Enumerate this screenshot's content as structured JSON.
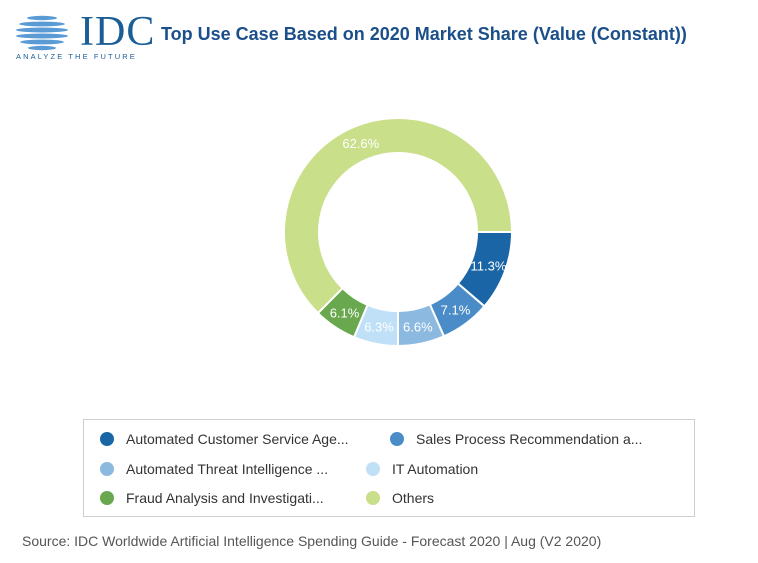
{
  "logo": {
    "word": "IDC",
    "tagline": "ANALYZE THE FUTURE",
    "color": "#1b5e96"
  },
  "title": "Top Use Case Based on 2020 Market Share (Value (Constant))",
  "chart_data": {
    "type": "pie",
    "variant": "donut",
    "title": "Top Use Case Based on 2020 Market Share (Value (Constant))",
    "categories": [
      "Automated Customer Service Age...",
      "Sales Process Recommendation a...",
      "Automated Threat Intelligence ...",
      "IT Automation",
      "Fraud Analysis and Investigati...",
      "Others"
    ],
    "values": [
      11.3,
      7.1,
      6.6,
      6.3,
      6.1,
      62.6
    ],
    "labels": [
      "11.3%",
      "7.1%",
      "6.6%",
      "6.3%",
      "6.1%",
      "62.6%"
    ],
    "colors": [
      "#1a65a6",
      "#4a8cc7",
      "#8cb9e0",
      "#bfe0f7",
      "#6aa84f",
      "#c9df8a"
    ],
    "legend_position": "bottom"
  },
  "source": "Source: IDC Worldwide Artificial Intelligence Spending Guide - Forecast 2020 | Aug (V2 2020)"
}
